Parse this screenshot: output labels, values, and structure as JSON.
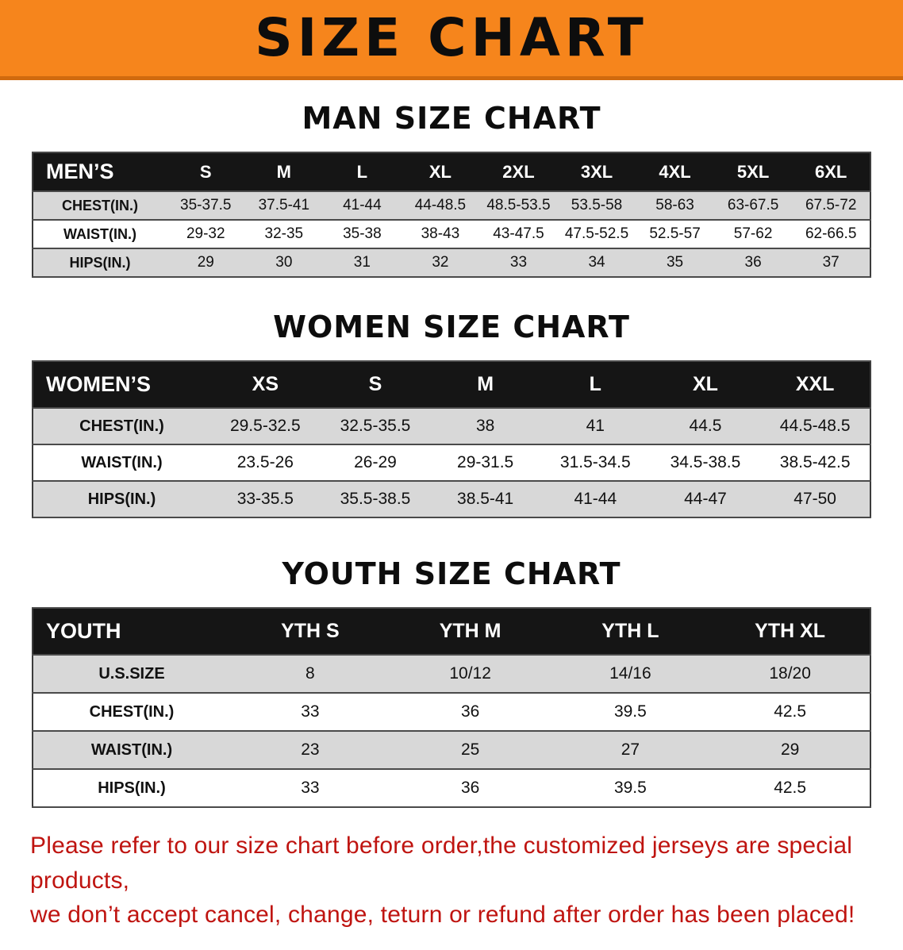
{
  "banner": {
    "title": "SIZE CHART",
    "bg_color": "#f6851c"
  },
  "colors": {
    "header_row_bg": "#151515",
    "shaded_row_bg": "#d8d8d8",
    "footer_text": "#bf1410"
  },
  "sections": {
    "men": {
      "heading": "MAN SIZE CHART",
      "header": [
        "MEN’S",
        "S",
        "M",
        "L",
        "XL",
        "2XL",
        "3XL",
        "4XL",
        "5XL",
        "6XL"
      ],
      "rows": [
        {
          "label": "CHEST(IN.)",
          "values": [
            "35-37.5",
            "37.5-41",
            "41-44",
            "44-48.5",
            "48.5-53.5",
            "53.5-58",
            "58-63",
            "63-67.5",
            "67.5-72"
          ]
        },
        {
          "label": "WAIST(IN.)",
          "values": [
            "29-32",
            "32-35",
            "35-38",
            "38-43",
            "43-47.5",
            "47.5-52.5",
            "52.5-57",
            "57-62",
            "62-66.5"
          ]
        },
        {
          "label": "HIPS(IN.)",
          "values": [
            "29",
            "30",
            "31",
            "32",
            "33",
            "34",
            "35",
            "36",
            "37"
          ]
        }
      ]
    },
    "women": {
      "heading": "WOMEN SIZE CHART",
      "header": [
        "WOMEN’S",
        "XS",
        "S",
        "M",
        "L",
        "XL",
        "XXL"
      ],
      "rows": [
        {
          "label": "CHEST(IN.)",
          "values": [
            "29.5-32.5",
            "32.5-35.5",
            "38",
            "41",
            "44.5",
            "44.5-48.5"
          ]
        },
        {
          "label": "WAIST(IN.)",
          "values": [
            "23.5-26",
            "26-29",
            "29-31.5",
            "31.5-34.5",
            "34.5-38.5",
            "38.5-42.5"
          ]
        },
        {
          "label": "HIPS(IN.)",
          "values": [
            "33-35.5",
            "35.5-38.5",
            "38.5-41",
            "41-44",
            "44-47",
            "47-50"
          ]
        }
      ]
    },
    "youth": {
      "heading": "YOUTH SIZE CHART",
      "header": [
        "YOUTH",
        "YTH S",
        "YTH M",
        "YTH L",
        "YTH XL"
      ],
      "rows": [
        {
          "label": "U.S.SIZE",
          "values": [
            "8",
            "10/12",
            "14/16",
            "18/20"
          ]
        },
        {
          "label": "CHEST(IN.)",
          "values": [
            "33",
            "36",
            "39.5",
            "42.5"
          ]
        },
        {
          "label": "WAIST(IN.)",
          "values": [
            "23",
            "25",
            "27",
            "29"
          ]
        },
        {
          "label": "HIPS(IN.)",
          "values": [
            "33",
            "36",
            "39.5",
            "42.5"
          ]
        }
      ]
    }
  },
  "footer": {
    "line1": "Please refer to our size chart before order,the customized jerseys are special products,",
    "line2": "we don’t accept cancel, change, teturn or refund after order has been placed!"
  }
}
